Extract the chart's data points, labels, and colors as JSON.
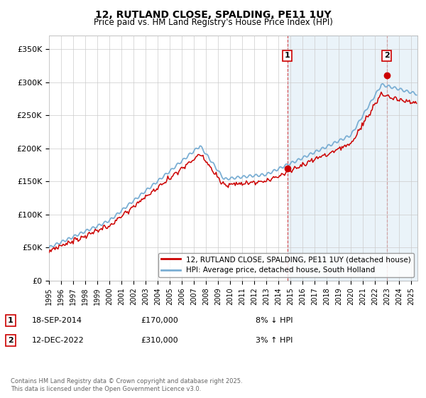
{
  "title": "12, RUTLAND CLOSE, SPALDING, PE11 1UY",
  "subtitle": "Price paid vs. HM Land Registry's House Price Index (HPI)",
  "ylim": [
    0,
    370000
  ],
  "yticks": [
    0,
    50000,
    100000,
    150000,
    200000,
    250000,
    300000,
    350000
  ],
  "ytick_labels": [
    "£0",
    "£50K",
    "£100K",
    "£150K",
    "£200K",
    "£250K",
    "£300K",
    "£350K"
  ],
  "hpi_color": "#7bafd4",
  "hpi_fill_color": "#d6e8f5",
  "price_color": "#cc0000",
  "bg_color": "#ffffff",
  "grid_color": "#cccccc",
  "legend_label_price": "12, RUTLAND CLOSE, SPALDING, PE11 1UY (detached house)",
  "legend_label_hpi": "HPI: Average price, detached house, South Holland",
  "annotation1_label": "1",
  "annotation1_date": "18-SEP-2014",
  "annotation1_price": "£170,000",
  "annotation1_hpi": "8% ↓ HPI",
  "annotation2_label": "2",
  "annotation2_date": "12-DEC-2022",
  "annotation2_price": "£310,000",
  "annotation2_hpi": "3% ↑ HPI",
  "footer": "Contains HM Land Registry data © Crown copyright and database right 2025.\nThis data is licensed under the Open Government Licence v3.0.",
  "vline1_x": 2014.72,
  "vline2_x": 2022.95,
  "sale1_y": 170000,
  "sale2_y": 310000,
  "xmin": 1995,
  "xmax": 2025.5
}
